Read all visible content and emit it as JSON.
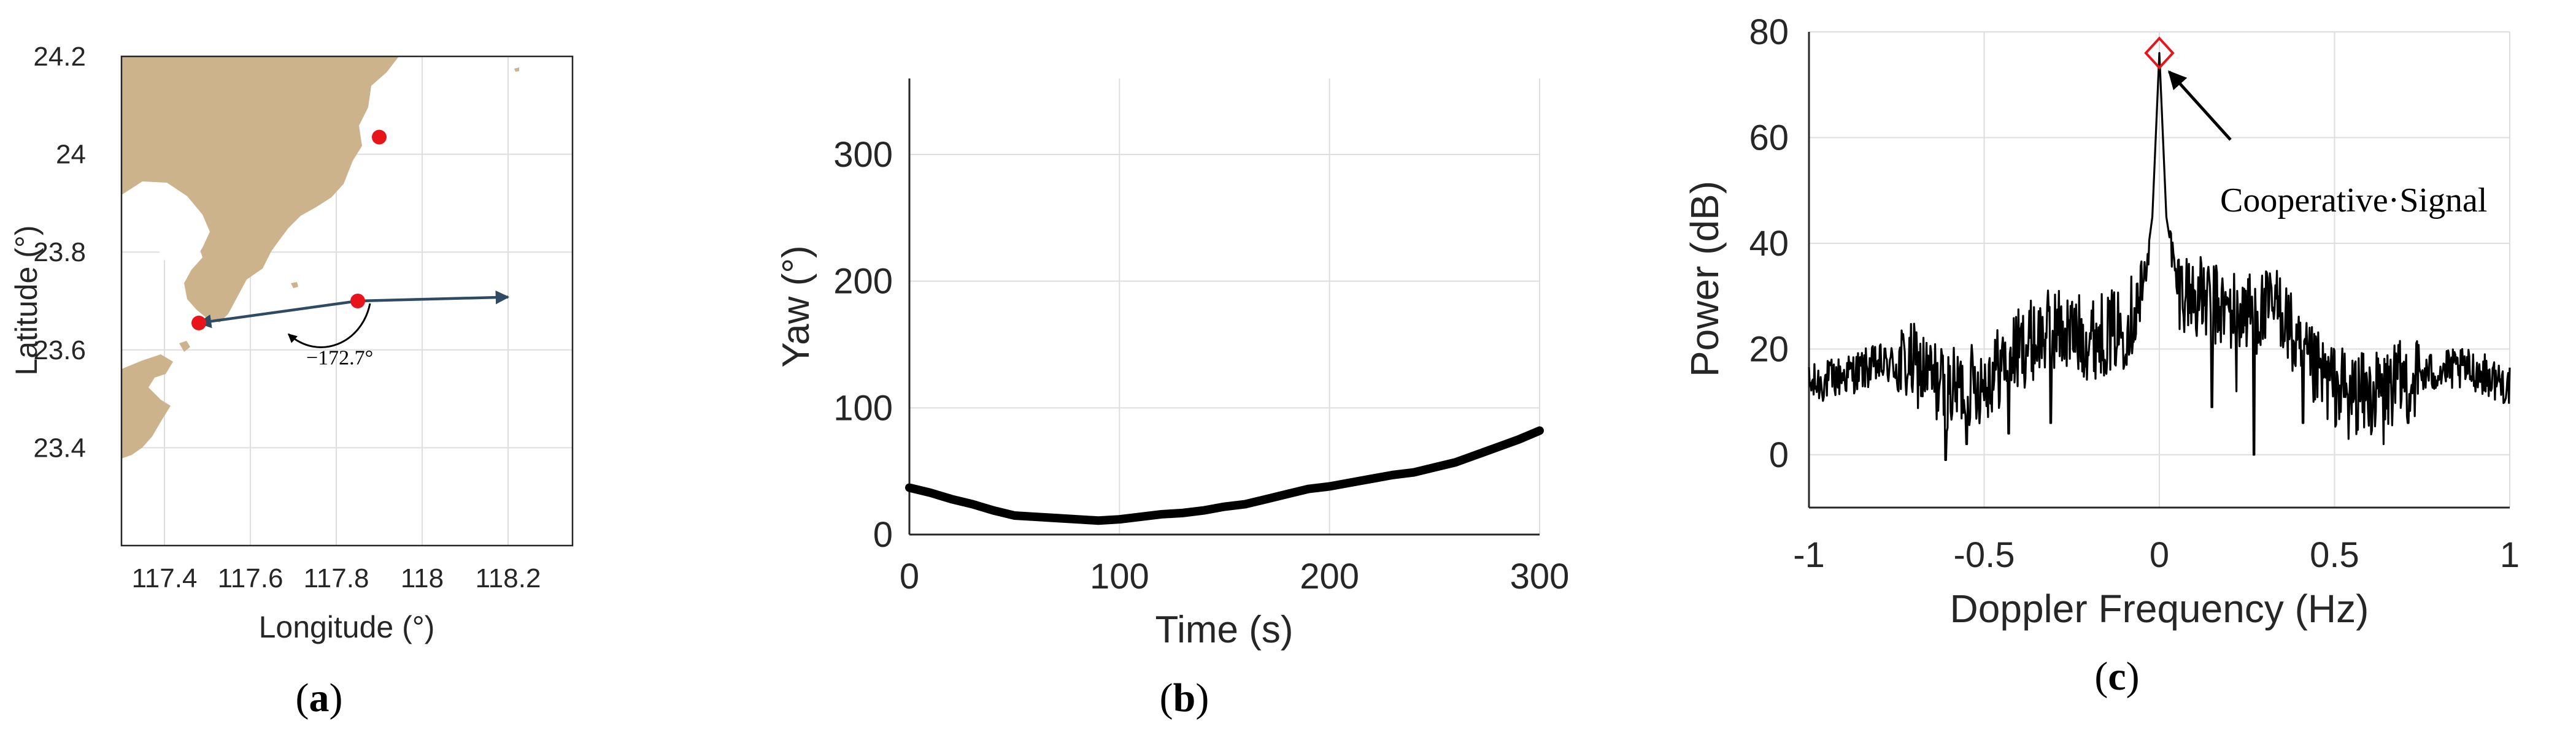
{
  "colors": {
    "land": "#CCB38C",
    "marker": "#E8141C",
    "vector": "#2F4A63",
    "curve": "#000000",
    "peak_marker": "#E8141C"
  },
  "chart_data": [
    {
      "id": "a",
      "type": "map",
      "panel_label": {
        "open": "(",
        "letter": "a",
        "close": ")"
      },
      "xlabel": "Longitude (°)",
      "ylabel": "Latitude (°)",
      "xlim": [
        117.3,
        118.35
      ],
      "ylim": [
        23.2,
        24.2
      ],
      "xticks": [
        117.4,
        117.6,
        117.8,
        118,
        118.2
      ],
      "xtick_labels": [
        "117.4",
        "117.6",
        "117.8",
        "118",
        "118.2"
      ],
      "yticks": [
        23.4,
        23.6,
        23.8,
        24,
        24.2
      ],
      "ytick_labels": [
        "23.4",
        "23.6",
        "23.8",
        "24",
        "24.2"
      ],
      "grid": true,
      "points": [
        {
          "lon": 117.9,
          "lat": 24.035
        },
        {
          "lon": 117.85,
          "lat": 23.7
        },
        {
          "lon": 117.48,
          "lat": 23.655
        }
      ],
      "vectors": [
        {
          "from": [
            117.85,
            23.7
          ],
          "to": [
            118.2,
            23.708
          ]
        },
        {
          "from": [
            117.85,
            23.7
          ],
          "to": [
            117.48,
            23.655
          ]
        }
      ],
      "annotation": {
        "text": "−172.7°",
        "lon": 117.73,
        "lat": 23.57
      }
    },
    {
      "id": "b",
      "type": "line",
      "panel_label": {
        "open": "(",
        "letter": "b",
        "close": ")"
      },
      "xlabel": "Time (s)",
      "ylabel": "Yaw (°)",
      "xlim": [
        0,
        300
      ],
      "ylim": [
        0,
        360
      ],
      "xticks": [
        0,
        100,
        200,
        300
      ],
      "yticks": [
        0,
        100,
        200,
        300
      ],
      "grid": true,
      "series": [
        {
          "x": [
            0,
            10,
            20,
            30,
            40,
            50,
            60,
            70,
            80,
            90,
            100,
            110,
            120,
            130,
            140,
            150,
            160,
            170,
            180,
            190,
            200,
            210,
            220,
            230,
            240,
            250,
            260,
            270,
            280,
            290,
            300
          ],
          "y": [
            37,
            33,
            28,
            24,
            19,
            15,
            14,
            13,
            12,
            11,
            12,
            14,
            16,
            17,
            19,
            22,
            24,
            28,
            32,
            36,
            38,
            41,
            44,
            47,
            49,
            53,
            57,
            63,
            69,
            75,
            82
          ]
        }
      ]
    },
    {
      "id": "c",
      "type": "line",
      "panel_label": {
        "open": "(",
        "letter": "c",
        "close": ")"
      },
      "xlabel": "Doppler Frequency (Hz)",
      "ylabel": "Power (dB)",
      "xlim": [
        -1,
        1
      ],
      "ylim": [
        -10,
        80
      ],
      "xticks": [
        -1,
        -0.5,
        0,
        0.5,
        1
      ],
      "xtick_labels": [
        "-1",
        "-0.5",
        "0",
        "0.5",
        "1"
      ],
      "yticks": [
        0,
        20,
        40,
        60,
        80
      ],
      "grid": true,
      "peak": {
        "x": 0,
        "y": 76
      },
      "annotation": {
        "text": "Cooperative·Signal"
      },
      "envelope": {
        "x": [
          -1,
          -0.9,
          -0.8,
          -0.7,
          -0.6,
          -0.5,
          -0.4,
          -0.3,
          -0.2,
          -0.1,
          -0.05,
          -0.02,
          0,
          0.02,
          0.05,
          0.1,
          0.2,
          0.3,
          0.35,
          0.4,
          0.5,
          0.6,
          0.7,
          0.8,
          0.9,
          1
        ],
        "y": [
          13,
          15,
          17,
          17,
          12,
          14,
          20,
          24,
          22,
          24,
          30,
          45,
          76,
          45,
          32,
          30,
          27,
          27,
          28,
          18,
          13,
          11,
          14,
          16,
          16,
          13
        ]
      },
      "envelope_spread": 5,
      "dips": [
        {
          "x": -0.61,
          "y": -1
        },
        {
          "x": -0.55,
          "y": 2
        },
        {
          "x": -0.43,
          "y": 4
        },
        {
          "x": -0.31,
          "y": 6
        },
        {
          "x": 0.15,
          "y": 9
        },
        {
          "x": 0.22,
          "y": 12
        },
        {
          "x": 0.27,
          "y": 0
        },
        {
          "x": 0.41,
          "y": 6
        },
        {
          "x": 0.54,
          "y": 3
        },
        {
          "x": 0.64,
          "y": 2
        },
        {
          "x": 0.71,
          "y": 6
        }
      ]
    }
  ]
}
